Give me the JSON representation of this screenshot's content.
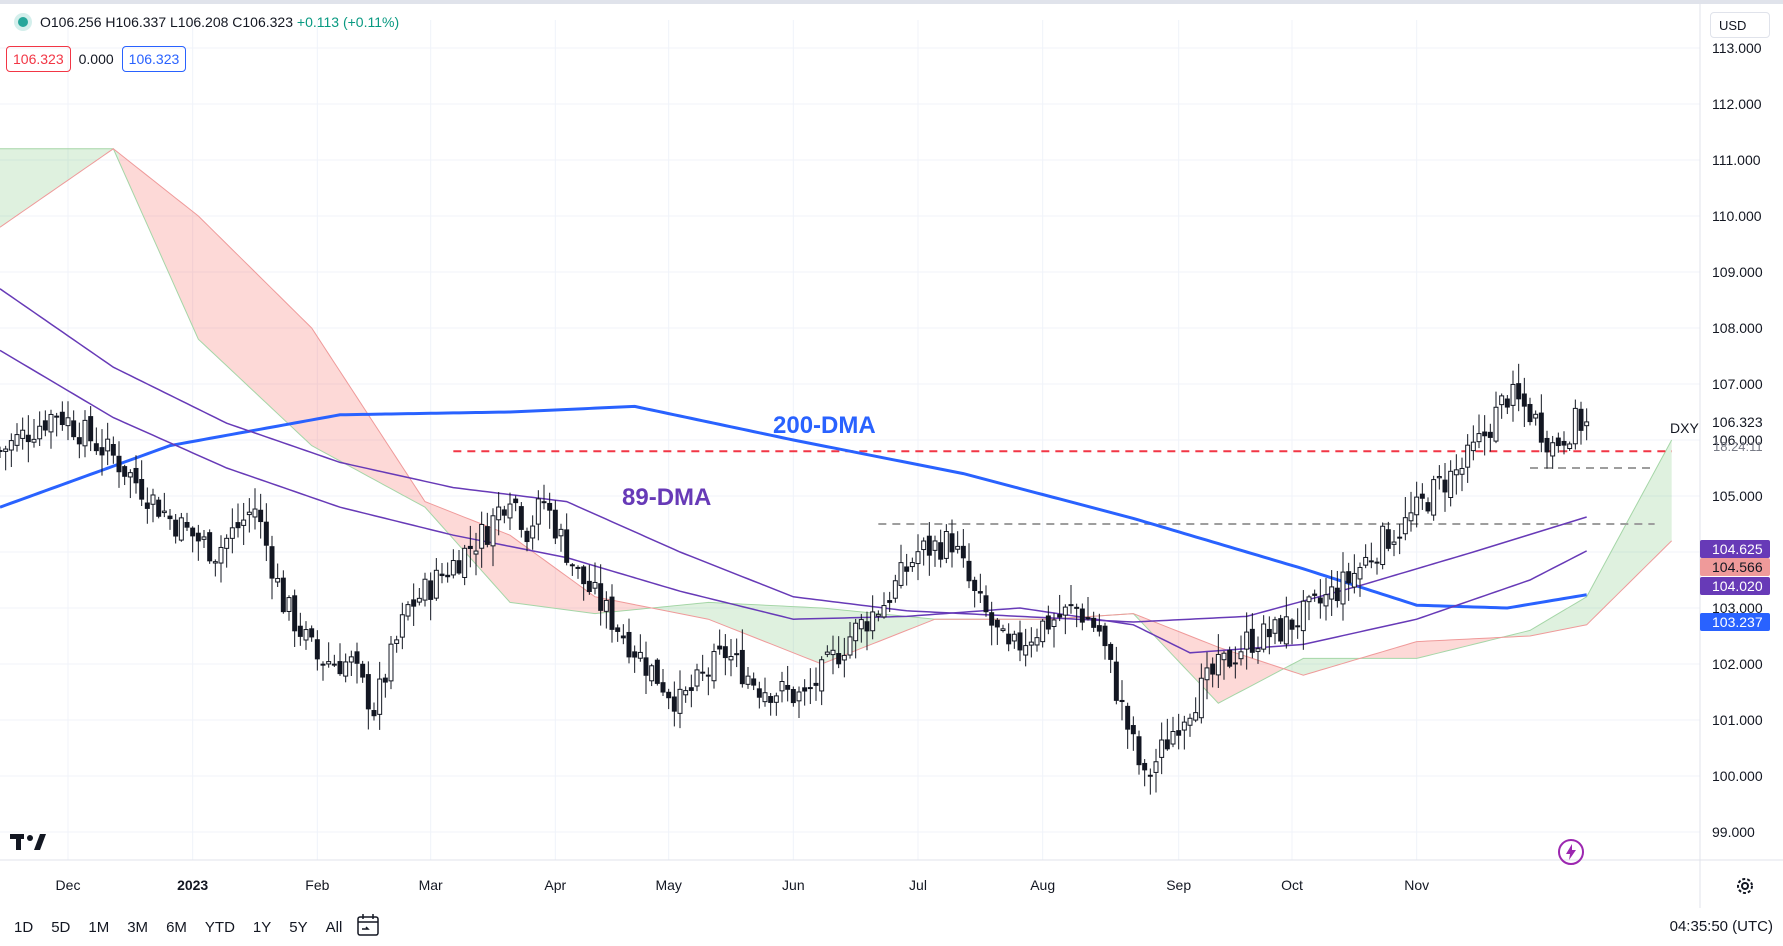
{
  "legend": {
    "ohlc_text": "O106.256 H106.337 L106.208 C106.323",
    "change_text": "+0.113 (+0.11%)"
  },
  "indicator_values": [
    "106.323",
    "0.000",
    "106.323"
  ],
  "currency": "USD",
  "symbol": "DXY",
  "countdown": "18:24:11",
  "price_tags": {
    "last": {
      "text": "106.323",
      "color": "#ffffff"
    },
    "ma89": {
      "text": "104.625",
      "bg": "#673ab7"
    },
    "kijun": {
      "text": "104.566",
      "bg": "#ef9a9a"
    },
    "ma_other": {
      "text": "104.020",
      "bg": "#673ab7"
    },
    "ma200": {
      "text": "103.237",
      "bg": "#2962ff"
    }
  },
  "annotations": {
    "ma200": "200-DMA",
    "ma89": "89-DMA"
  },
  "ranges": [
    "1D",
    "5D",
    "1M",
    "3M",
    "6M",
    "YTD",
    "1Y",
    "5Y",
    "All"
  ],
  "clock": "04:35:50 (UTC)",
  "colors": {
    "up": "#ffffff",
    "down": "#131722",
    "ma200": "#2962ff",
    "ma89": "#673ab7",
    "support": "#f23645"
  },
  "icons": [
    "tradingview-logo-icon",
    "lightning-icon",
    "settings-gear-icon",
    "calendar-range-icon"
  ],
  "chart_data": {
    "type": "candlestick",
    "title": "",
    "xlabel": "",
    "ylabel": "",
    "ylim": [
      98.5,
      113.5
    ],
    "y_ticks": [
      99,
      100,
      101,
      102,
      103,
      104,
      105,
      106,
      107,
      108,
      109,
      110,
      111,
      112,
      113
    ],
    "y_tick_labels": [
      "99.000",
      "100.000",
      "101.000",
      "102.000",
      "103.000",
      "104.000",
      "105.000",
      "106.000",
      "107.000",
      "108.000",
      "109.000",
      "110.000",
      "111.000",
      "112.000",
      "113.000"
    ],
    "x_labels": [
      "Dec",
      "2023",
      "Feb",
      "Mar",
      "Apr",
      "May",
      "Jun",
      "Jul",
      "Aug",
      "Sep",
      "Oct",
      "Nov"
    ],
    "grid": true,
    "series": [
      {
        "name": "DXY",
        "close_waypoints": [
          [
            0,
            105.8
          ],
          [
            10,
            106.5
          ],
          [
            20,
            105.7
          ],
          [
            30,
            104.6
          ],
          [
            38,
            104.0
          ],
          [
            45,
            104.8
          ],
          [
            50,
            103.1
          ],
          [
            56,
            102.1
          ],
          [
            62,
            102.0
          ],
          [
            66,
            101.2
          ],
          [
            72,
            103.0
          ],
          [
            80,
            103.8
          ],
          [
            86,
            104.4
          ],
          [
            90,
            105.1
          ],
          [
            93,
            104.4
          ],
          [
            96,
            104.9
          ],
          [
            102,
            103.6
          ],
          [
            108,
            102.8
          ],
          [
            114,
            102.0
          ],
          [
            120,
            101.3
          ],
          [
            128,
            102.2
          ],
          [
            134,
            101.6
          ],
          [
            142,
            101.4
          ],
          [
            150,
            102.5
          ],
          [
            156,
            103.1
          ],
          [
            162,
            104.0
          ],
          [
            168,
            104.2
          ],
          [
            172,
            103.2
          ],
          [
            178,
            102.2
          ],
          [
            184,
            102.7
          ],
          [
            190,
            103.0
          ],
          [
            194,
            102.6
          ],
          [
            198,
            101.2
          ],
          [
            202,
            99.9
          ],
          [
            208,
            101.0
          ],
          [
            214,
            101.8
          ],
          [
            220,
            102.4
          ],
          [
            226,
            102.6
          ],
          [
            232,
            103.0
          ],
          [
            238,
            103.5
          ],
          [
            244,
            104.2
          ],
          [
            248,
            104.5
          ],
          [
            254,
            105.2
          ],
          [
            258,
            105.5
          ],
          [
            262,
            106.1
          ],
          [
            266,
            106.8
          ],
          [
            270,
            106.5
          ],
          [
            274,
            105.9
          ],
          [
            278,
            106.3
          ],
          [
            280,
            106.323
          ]
        ]
      },
      {
        "name": "200-DMA",
        "points": [
          [
            0,
            104.8
          ],
          [
            30,
            105.9
          ],
          [
            60,
            106.45
          ],
          [
            90,
            106.5
          ],
          [
            112,
            106.6
          ],
          [
            140,
            106.0
          ],
          [
            170,
            105.4
          ],
          [
            200,
            104.6
          ],
          [
            230,
            103.7
          ],
          [
            250,
            103.05
          ],
          [
            266,
            103.0
          ],
          [
            280,
            103.237
          ]
        ]
      },
      {
        "name": "89-DMA",
        "points": [
          [
            0,
            108.7
          ],
          [
            20,
            107.3
          ],
          [
            40,
            106.3
          ],
          [
            60,
            105.6
          ],
          [
            80,
            105.15
          ],
          [
            100,
            104.9
          ],
          [
            120,
            104.0
          ],
          [
            140,
            103.2
          ],
          [
            160,
            102.95
          ],
          [
            180,
            102.85
          ],
          [
            200,
            102.75
          ],
          [
            220,
            102.85
          ],
          [
            240,
            103.4
          ],
          [
            260,
            104.0
          ],
          [
            280,
            104.625
          ]
        ]
      },
      {
        "name": "",
        "points": [
          [
            0,
            107.6
          ],
          [
            20,
            106.4
          ],
          [
            40,
            105.5
          ],
          [
            60,
            104.8
          ],
          [
            80,
            104.3
          ],
          [
            100,
            103.9
          ],
          [
            120,
            103.3
          ],
          [
            140,
            102.8
          ],
          [
            160,
            102.85
          ],
          [
            180,
            103.0
          ],
          [
            200,
            102.7
          ],
          [
            210,
            102.2
          ],
          [
            230,
            102.35
          ],
          [
            250,
            102.8
          ],
          [
            270,
            103.5
          ],
          [
            280,
            104.02
          ]
        ]
      }
    ],
    "horizontal_lines": [
      {
        "value": 105.8,
        "style": "dashed-red"
      },
      {
        "value": 105.5,
        "style": "dashed-gray"
      },
      {
        "value": 104.5,
        "style": "dashed-gray"
      }
    ],
    "cloud": {
      "upper": [
        [
          0,
          111.2
        ],
        [
          20,
          111.2
        ],
        [
          35,
          107.8
        ],
        [
          55,
          105.9
        ],
        [
          75,
          104.8
        ],
        [
          90,
          103.1
        ],
        [
          105,
          102.9
        ],
        [
          125,
          103.1
        ],
        [
          145,
          103.0
        ],
        [
          165,
          102.8
        ],
        [
          185,
          102.8
        ],
        [
          200,
          102.9
        ],
        [
          215,
          101.3
        ],
        [
          230,
          102.1
        ],
        [
          250,
          102.1
        ],
        [
          270,
          102.6
        ],
        [
          280,
          103.2
        ],
        [
          295,
          106.0
        ]
      ],
      "lower": [
        [
          0,
          109.8
        ],
        [
          20,
          111.2
        ],
        [
          35,
          110.0
        ],
        [
          55,
          108.0
        ],
        [
          75,
          104.9
        ],
        [
          90,
          104.3
        ],
        [
          105,
          103.2
        ],
        [
          125,
          102.8
        ],
        [
          145,
          102.0
        ],
        [
          165,
          102.8
        ],
        [
          185,
          102.8
        ],
        [
          200,
          102.9
        ],
        [
          215,
          102.3
        ],
        [
          230,
          101.8
        ],
        [
          250,
          102.4
        ],
        [
          270,
          102.5
        ],
        [
          280,
          102.7
        ],
        [
          295,
          104.2
        ]
      ]
    }
  }
}
